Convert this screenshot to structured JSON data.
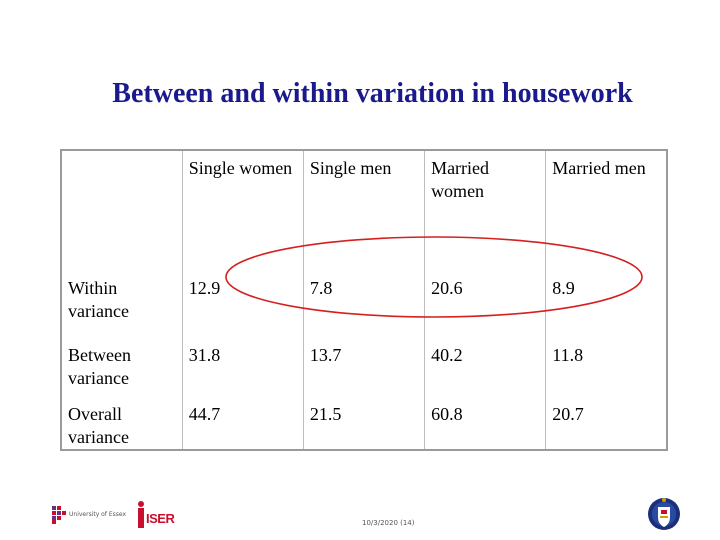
{
  "slide": {
    "title": "Between and within variation in housework"
  },
  "table": {
    "columns": [
      "",
      "Single women",
      "Single men",
      "Married women",
      "Married men"
    ],
    "rows": [
      {
        "label": "Within variance",
        "values": [
          "12.9",
          "7.8",
          "20.6",
          "8.9"
        ]
      },
      {
        "label": "Between variance",
        "values": [
          "31.8",
          "13.7",
          "40.2",
          "11.8"
        ]
      },
      {
        "label": "Overall variance",
        "values": [
          "44.7",
          "21.5",
          "60.8",
          "20.7"
        ]
      }
    ]
  },
  "highlight": {
    "color": "#d62020",
    "target_row": "Within variance"
  },
  "footer": {
    "date": "10/3/2020 (14)",
    "left_logo_text": "University of Essex",
    "center_logo_text": "ISER"
  },
  "colors": {
    "title": "#1a1a8c",
    "iser_red": "#c8102e",
    "crest_blue": "#1c2f7a"
  }
}
